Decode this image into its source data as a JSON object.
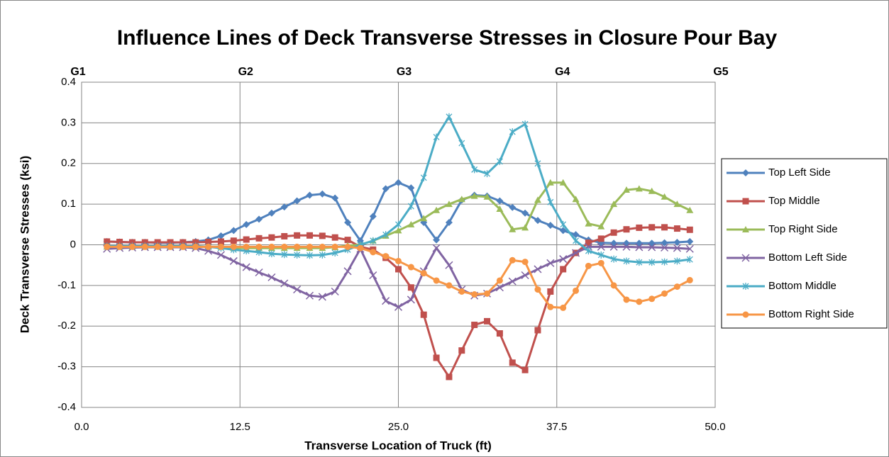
{
  "chart_data": {
    "type": "line",
    "title": "Influence Lines of Deck Transverse Stresses in Closure Pour Bay",
    "x_label": "Transverse Location of Truck (ft)",
    "y_label": "Deck Transverse Stresses (ksi)",
    "xlim": [
      0,
      50
    ],
    "xticks": [
      {
        "value": 0,
        "label": "0.0"
      },
      12.5,
      {
        "value": 25,
        "label": "25.0"
      },
      37.5,
      {
        "value": 50,
        "label": "50.0"
      }
    ],
    "ylim": [
      -0.4,
      0.4
    ],
    "yticks": [
      0.4,
      0.3,
      0.2,
      0.1,
      0,
      -0.1,
      -0.2,
      -0.3,
      -0.4
    ],
    "grid": true,
    "legend": "right",
    "annotations": [
      {
        "text": "G1",
        "x": 0
      },
      {
        "text": "G2",
        "x": 12.5
      },
      {
        "text": "G3",
        "x": 25
      },
      {
        "text": "G4",
        "x": 37.5
      },
      {
        "text": "G5",
        "x": 50
      }
    ],
    "x": [
      2,
      3,
      4,
      5,
      6,
      7,
      8,
      9,
      10,
      11,
      12,
      13,
      14,
      15,
      16,
      17,
      18,
      19,
      20,
      21,
      22,
      23,
      24,
      25,
      26,
      27,
      28,
      29,
      30,
      31,
      32,
      33,
      34,
      35,
      36,
      37,
      38,
      39,
      40,
      41,
      42,
      43,
      44,
      45,
      46,
      47,
      48
    ],
    "series": [
      {
        "name": "Top Left Side",
        "color": "#4f81bd",
        "marker": "diamond",
        "values": [
          0.008,
          0.007,
          0.006,
          0.006,
          0.005,
          0.005,
          0.006,
          0.008,
          0.012,
          0.022,
          0.035,
          0.05,
          0.063,
          0.078,
          0.093,
          0.108,
          0.122,
          0.125,
          0.115,
          0.055,
          0.01,
          0.07,
          0.138,
          0.153,
          0.14,
          0.055,
          0.012,
          0.055,
          0.11,
          0.122,
          0.12,
          0.108,
          0.092,
          0.078,
          0.06,
          0.048,
          0.035,
          0.025,
          0.012,
          0.005,
          0.004,
          0.004,
          0.004,
          0.004,
          0.005,
          0.006,
          0.008
        ]
      },
      {
        "name": "Top Middle",
        "color": "#c0504d",
        "marker": "square",
        "values": [
          0.008,
          0.007,
          0.006,
          0.006,
          0.006,
          0.006,
          0.006,
          0.006,
          0.007,
          0.008,
          0.01,
          0.013,
          0.016,
          0.018,
          0.021,
          0.023,
          0.023,
          0.022,
          0.018,
          0.012,
          -0.005,
          -0.012,
          -0.032,
          -0.06,
          -0.105,
          -0.172,
          -0.278,
          -0.325,
          -0.26,
          -0.197,
          -0.188,
          -0.218,
          -0.29,
          -0.308,
          -0.21,
          -0.115,
          -0.06,
          -0.02,
          0.005,
          0.015,
          0.03,
          0.038,
          0.042,
          0.043,
          0.043,
          0.04,
          0.037
        ]
      },
      {
        "name": "Top Right Side",
        "color": "#9bbb59",
        "marker": "triangle",
        "values": [
          -0.005,
          -0.005,
          -0.005,
          -0.005,
          -0.005,
          -0.005,
          -0.005,
          -0.005,
          -0.005,
          -0.005,
          -0.008,
          -0.008,
          -0.008,
          -0.008,
          -0.008,
          -0.008,
          -0.008,
          -0.008,
          -0.006,
          -0.002,
          0,
          0.01,
          0.022,
          0.035,
          0.05,
          0.065,
          0.085,
          0.1,
          0.112,
          0.12,
          0.118,
          0.088,
          0.038,
          0.042,
          0.11,
          0.153,
          0.153,
          0.112,
          0.052,
          0.045,
          0.1,
          0.135,
          0.138,
          0.132,
          0.118,
          0.1,
          0.085
        ]
      },
      {
        "name": "Bottom Left Side",
        "color": "#8064a2",
        "marker": "x",
        "values": [
          -0.01,
          -0.008,
          -0.007,
          -0.006,
          -0.006,
          -0.006,
          -0.006,
          -0.008,
          -0.015,
          -0.025,
          -0.04,
          -0.055,
          -0.068,
          -0.08,
          -0.095,
          -0.11,
          -0.125,
          -0.128,
          -0.115,
          -0.065,
          -0.01,
          -0.075,
          -0.138,
          -0.153,
          -0.135,
          -0.065,
          -0.008,
          -0.05,
          -0.11,
          -0.125,
          -0.12,
          -0.105,
          -0.09,
          -0.075,
          -0.06,
          -0.045,
          -0.035,
          -0.02,
          -0.005,
          -0.005,
          -0.005,
          -0.005,
          -0.006,
          -0.006,
          -0.007,
          -0.008,
          -0.01
        ]
      },
      {
        "name": "Bottom Middle",
        "color": "#4bacc6",
        "marker": "star",
        "values": [
          -0.003,
          -0.003,
          -0.003,
          -0.003,
          -0.003,
          -0.003,
          -0.003,
          -0.003,
          -0.005,
          -0.008,
          -0.012,
          -0.015,
          -0.018,
          -0.022,
          -0.024,
          -0.025,
          -0.026,
          -0.025,
          -0.02,
          -0.012,
          0,
          0.01,
          0.025,
          0.05,
          0.095,
          0.165,
          0.265,
          0.315,
          0.25,
          0.185,
          0.175,
          0.205,
          0.278,
          0.297,
          0.2,
          0.105,
          0.05,
          0.01,
          -0.015,
          -0.025,
          -0.035,
          -0.04,
          -0.043,
          -0.043,
          -0.042,
          -0.04,
          -0.036
        ]
      },
      {
        "name": "Bottom Right Side",
        "color": "#f79646",
        "marker": "circle",
        "values": [
          -0.005,
          -0.005,
          -0.005,
          -0.005,
          -0.005,
          -0.005,
          -0.005,
          -0.005,
          -0.005,
          -0.005,
          -0.005,
          -0.005,
          -0.005,
          -0.005,
          -0.005,
          -0.005,
          -0.005,
          -0.005,
          -0.005,
          -0.005,
          -0.008,
          -0.018,
          -0.028,
          -0.04,
          -0.055,
          -0.07,
          -0.088,
          -0.1,
          -0.115,
          -0.122,
          -0.12,
          -0.088,
          -0.038,
          -0.042,
          -0.11,
          -0.153,
          -0.155,
          -0.113,
          -0.052,
          -0.045,
          -0.1,
          -0.135,
          -0.14,
          -0.133,
          -0.12,
          -0.103,
          -0.087
        ]
      }
    ]
  }
}
